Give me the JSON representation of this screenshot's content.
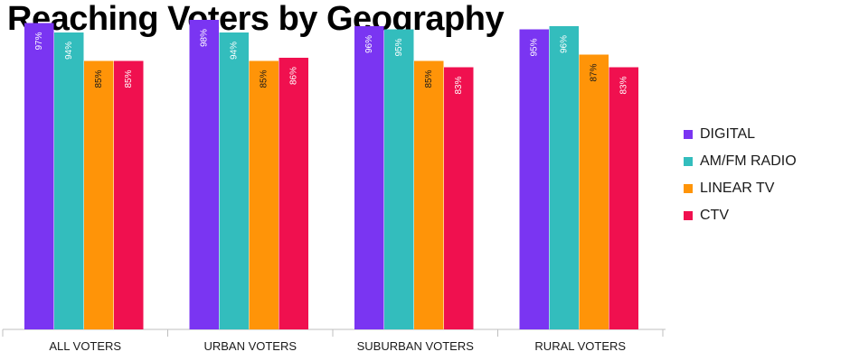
{
  "chart_data": {
    "type": "bar",
    "title": "Reaching Voters by Geography",
    "categories": [
      "ALL VOTERS",
      "URBAN VOTERS",
      "SUBURBAN VOTERS",
      "RURAL VOTERS"
    ],
    "series": [
      {
        "name": "DIGITAL",
        "color": "#7a35f2",
        "values": [
          97,
          98,
          96,
          95
        ],
        "labels": [
          "97%",
          "98%",
          "96%",
          "95%"
        ]
      },
      {
        "name": "AM/FM RADIO",
        "color": "#33bdbd",
        "values": [
          94,
          94,
          95,
          96
        ],
        "labels": [
          "94%",
          "94%",
          "95%",
          "96%"
        ]
      },
      {
        "name": "LINEAR TV",
        "color": "#ff9408",
        "values": [
          85,
          85,
          85,
          87
        ],
        "labels": [
          "85%",
          "85%",
          "85%",
          "87%"
        ]
      },
      {
        "name": "CTV",
        "color": "#f0104f",
        "values": [
          85,
          86,
          83,
          83
        ],
        "labels": [
          "85%",
          "86%",
          "83%",
          "83%"
        ]
      }
    ],
    "ylim": [
      0,
      100
    ],
    "legend_position": "right",
    "grid": false
  }
}
